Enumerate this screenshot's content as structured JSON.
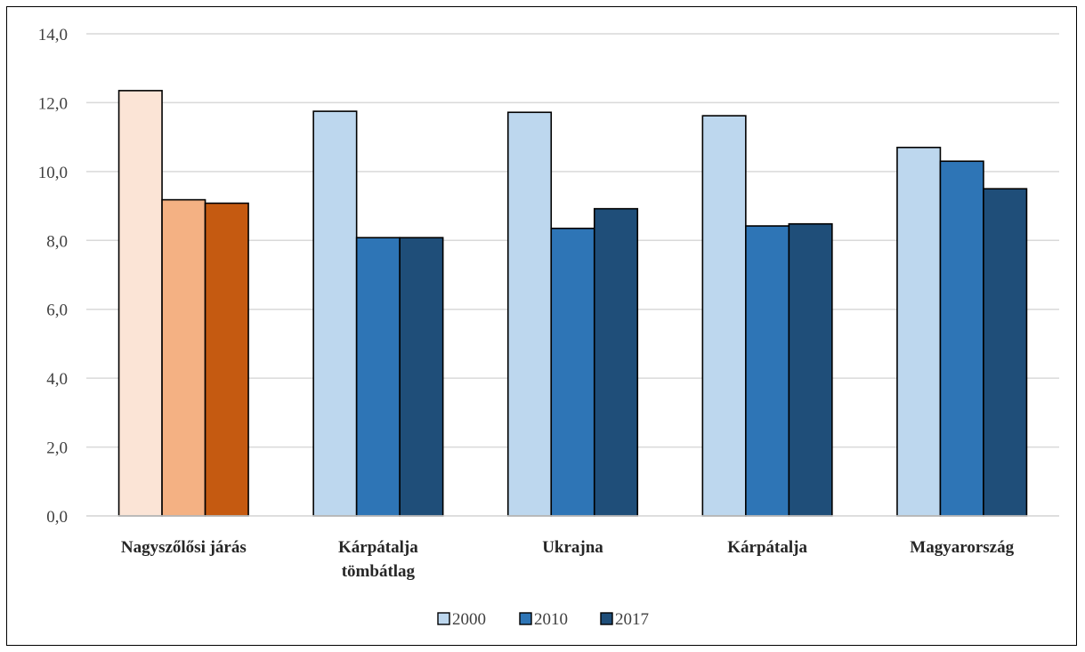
{
  "chart_data": {
    "type": "bar",
    "categories": [
      [
        "Nagyszőlősi járás"
      ],
      [
        "Kárpátalja",
        "tömbátlag"
      ],
      [
        "Ukrajna"
      ],
      [
        "Kárpátalja"
      ],
      [
        "Magyarország"
      ]
    ],
    "series": [
      {
        "name": "2000",
        "values": [
          12.35,
          11.75,
          11.72,
          11.62,
          10.7
        ]
      },
      {
        "name": "2010",
        "values": [
          9.18,
          8.08,
          8.35,
          8.42,
          10.3
        ]
      },
      {
        "name": "2017",
        "values": [
          9.08,
          8.08,
          8.92,
          8.48,
          9.5
        ]
      }
    ],
    "bar_colors": [
      [
        "#FBE4D6",
        "#F4B183",
        "#C55A11"
      ],
      [
        "#BDD7EE",
        "#2E75B6",
        "#1F4E79"
      ],
      [
        "#BDD7EE",
        "#2E75B6",
        "#1F4E79"
      ],
      [
        "#BDD7EE",
        "#2E75B6",
        "#1F4E79"
      ],
      [
        "#BDD7EE",
        "#2E75B6",
        "#1F4E79"
      ]
    ],
    "legend_colors": [
      "#BDD7EE",
      "#2E75B6",
      "#1F4E79"
    ],
    "yticks": [
      "0,0",
      "2,0",
      "4,0",
      "6,0",
      "8,0",
      "10,0",
      "12,0",
      "14,0"
    ],
    "ylim": [
      0,
      14
    ],
    "grid": true,
    "legend_position": "bottom",
    "title": "",
    "xlabel": "",
    "ylabel": ""
  }
}
